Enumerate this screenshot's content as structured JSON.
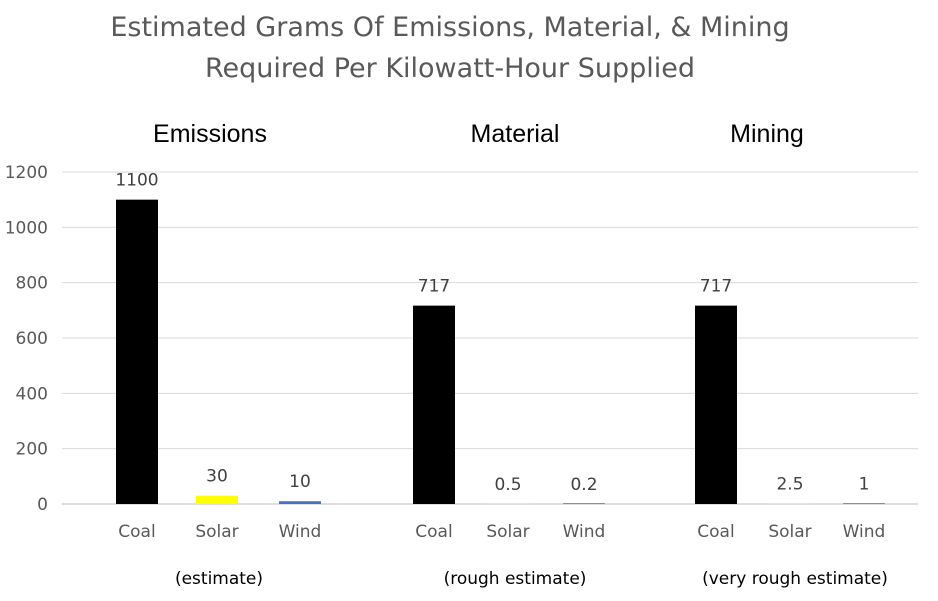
{
  "chart_data": {
    "type": "bar",
    "title": "Estimated Grams Of Emissions, Material, & Mining",
    "subtitle": "Required Per Kilowatt-Hour Supplied",
    "ylim": [
      0,
      1200
    ],
    "yticks": [
      0,
      200,
      400,
      600,
      800,
      1000,
      1200
    ],
    "grid": true,
    "groups": [
      {
        "name": "Emissions",
        "note": "(estimate)",
        "categories": [
          "Coal",
          "Solar",
          "Wind"
        ],
        "values": [
          1100,
          30,
          10
        ],
        "labels": [
          "1100",
          "30",
          "10"
        ],
        "colors": [
          "#000000",
          "#ffff00",
          "#4472c4"
        ]
      },
      {
        "name": "Material",
        "note": "(rough estimate)",
        "categories": [
          "Coal",
          "Solar",
          "Wind"
        ],
        "values": [
          717,
          0.5,
          0.2
        ],
        "labels": [
          "717",
          "0.5",
          "0.2"
        ],
        "colors": [
          "#000000",
          "#ffff00",
          "#70ad47"
        ]
      },
      {
        "name": "Mining",
        "note": "(very rough estimate)",
        "categories": [
          "Coal",
          "Solar",
          "Wind"
        ],
        "values": [
          717,
          2.5,
          1
        ],
        "labels": [
          "717",
          "2.5",
          "1"
        ],
        "colors": [
          "#000000",
          "#ffff00",
          "#70ad47"
        ]
      }
    ]
  }
}
